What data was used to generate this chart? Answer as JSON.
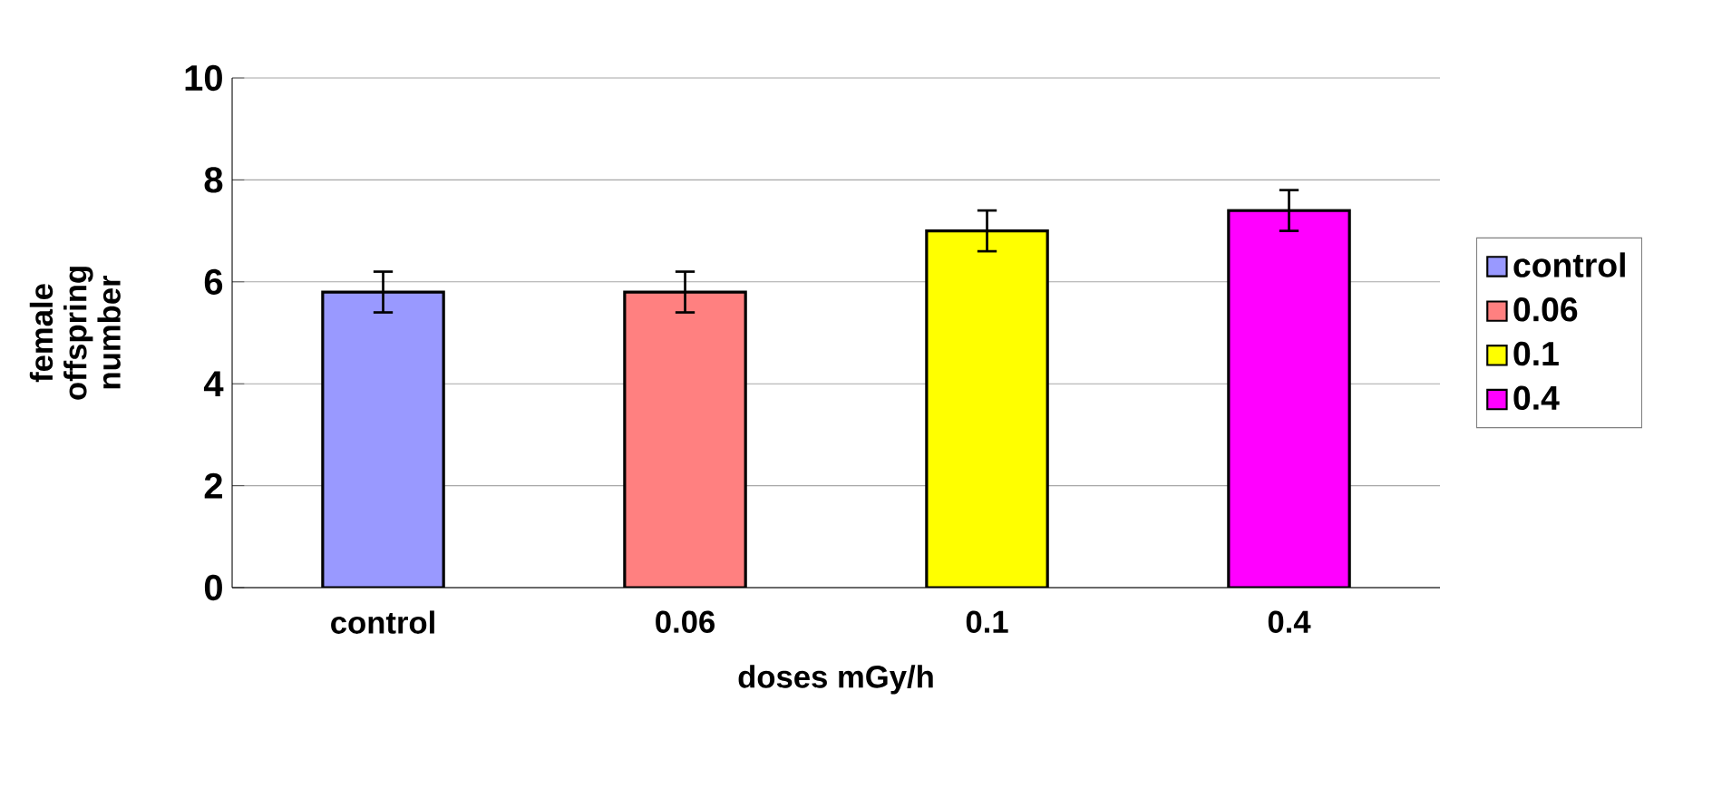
{
  "chart_data": {
    "type": "bar",
    "ylabel": "female offspring number",
    "xlabel": "doses mGy/h",
    "categories": [
      "control",
      "0.06",
      "0.1",
      "0.4"
    ],
    "series": [
      {
        "name": "control",
        "color": "#9999ff",
        "values": [
          5.8,
          null,
          null,
          null
        ],
        "errors": [
          0.4,
          null,
          null,
          null
        ]
      },
      {
        "name": "0.06",
        "color": "#ff8080",
        "values": [
          null,
          5.8,
          null,
          null
        ],
        "errors": [
          null,
          0.4,
          null,
          null
        ]
      },
      {
        "name": "0.1",
        "color": "#ffff00",
        "values": [
          null,
          null,
          7.0,
          null
        ],
        "errors": [
          null,
          null,
          0.4,
          null
        ]
      },
      {
        "name": "0.4",
        "color": "#ff00ff",
        "values": [
          null,
          null,
          null,
          7.4
        ],
        "errors": [
          null,
          null,
          null,
          0.4
        ]
      }
    ],
    "ylim": [
      0,
      10
    ],
    "yticks": [
      0,
      2,
      4,
      6,
      8,
      10
    ],
    "grid": "y",
    "legend": "right"
  }
}
